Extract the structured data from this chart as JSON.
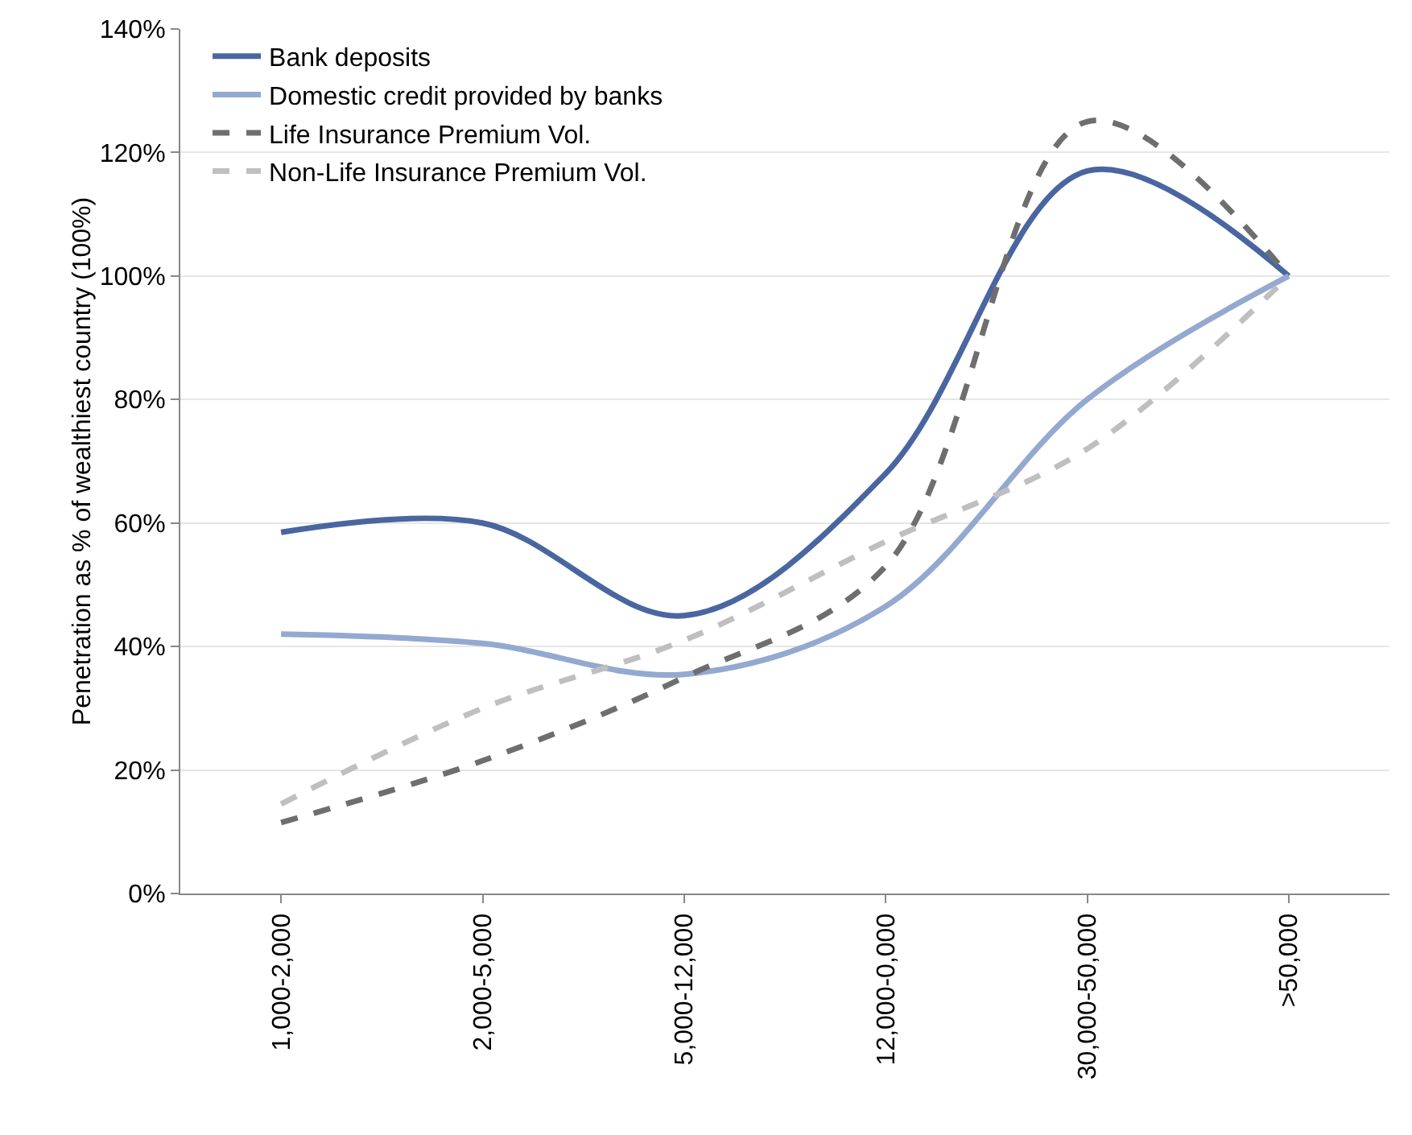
{
  "chart_data": {
    "type": "line",
    "ylabel": "Penetration as % of wealthiest country (100%)",
    "categories": [
      "1,000-2,000",
      "2,000-5,000",
      "5,000-12,000",
      "12,000-0,000",
      "30,000-50,000",
      ">50,000"
    ],
    "series": [
      {
        "name": "Bank deposits",
        "color": "#4a66a0",
        "line_style": "solid",
        "values": [
          58.5,
          60,
          45,
          68,
          117,
          100
        ]
      },
      {
        "name": "Domestic credit provided by banks",
        "color": "#94a9d0",
        "line_style": "solid",
        "values": [
          42,
          40.5,
          35.5,
          46.5,
          80,
          100
        ]
      },
      {
        "name": "Life Insurance Premium Vol.",
        "color": "#6e6e6e",
        "line_style": "dashed",
        "values": [
          11.5,
          21.5,
          35,
          53,
          125,
          100
        ]
      },
      {
        "name": "Non-Life Insurance Premium Vol.",
        "color": "#bfbfbf",
        "line_style": "dashed",
        "values": [
          14.5,
          30,
          41,
          57,
          72,
          100
        ]
      }
    ],
    "ylim": [
      0,
      140
    ],
    "yticks": [
      {
        "value": 0,
        "label": "0%"
      },
      {
        "value": 20,
        "label": "20%"
      },
      {
        "value": 40,
        "label": "40%"
      },
      {
        "value": 60,
        "label": "60%"
      },
      {
        "value": 80,
        "label": "80%"
      },
      {
        "value": 100,
        "label": "100%"
      },
      {
        "value": 120,
        "label": "120%"
      },
      {
        "value": 140,
        "label": "140%"
      }
    ],
    "grid": "y",
    "legend": "top left",
    "marker": "none"
  }
}
